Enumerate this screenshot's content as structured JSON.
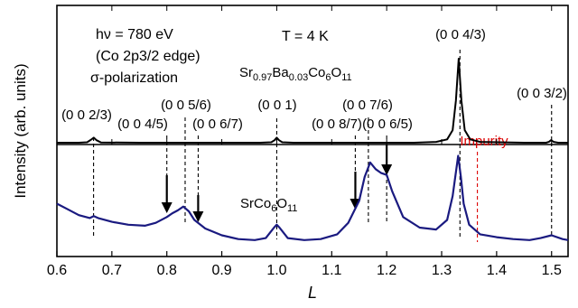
{
  "chart_data": {
    "type": "line",
    "xlabel": "L",
    "ylabel": "Intensity (arb. units)",
    "xlim": [
      0.6,
      1.53
    ],
    "x_ticks": [
      "0.6",
      "0.7",
      "0.8",
      "0.9",
      "1.0",
      "1.1",
      "1.2",
      "1.3",
      "1.4",
      "1.5"
    ],
    "grid": false,
    "annotations": {
      "energy": "hν = 780 eV",
      "edge": "(Co 2p3/2 edge)",
      "polarization": "σ-polarization",
      "temperature": "T = 4 K"
    },
    "series": [
      {
        "name": "Sr0.97Ba0.03Co6O11",
        "color": "#000000",
        "baseline": 0.0,
        "points": [
          [
            0.6,
            0.0
          ],
          [
            0.64,
            0.0
          ],
          [
            0.655,
            0.005
          ],
          [
            0.663,
            0.04
          ],
          [
            0.667,
            0.06
          ],
          [
            0.672,
            0.03
          ],
          [
            0.68,
            0.003
          ],
          [
            0.75,
            0.0
          ],
          [
            0.97,
            0.0
          ],
          [
            0.99,
            0.005
          ],
          [
            0.996,
            0.03
          ],
          [
            1.0,
            0.06
          ],
          [
            1.004,
            0.03
          ],
          [
            1.01,
            0.005
          ],
          [
            1.03,
            0.0
          ],
          [
            1.25,
            0.0
          ],
          [
            1.29,
            0.01
          ],
          [
            1.31,
            0.04
          ],
          [
            1.32,
            0.15
          ],
          [
            1.326,
            0.5
          ],
          [
            1.331,
            1.0
          ],
          [
            1.336,
            0.5
          ],
          [
            1.342,
            0.15
          ],
          [
            1.352,
            0.04
          ],
          [
            1.37,
            0.01
          ],
          [
            1.45,
            0.0
          ],
          [
            1.49,
            0.0
          ],
          [
            1.495,
            0.01
          ],
          [
            1.499,
            0.03
          ],
          [
            1.504,
            0.01
          ],
          [
            1.512,
            0.0
          ],
          [
            1.53,
            0.0
          ]
        ]
      },
      {
        "name": "SrCo6O11",
        "color": "#1a1a80",
        "baseline": 0.0,
        "points": [
          [
            0.6,
            0.42
          ],
          [
            0.62,
            0.36
          ],
          [
            0.64,
            0.3
          ],
          [
            0.66,
            0.27
          ],
          [
            0.667,
            0.29
          ],
          [
            0.675,
            0.27
          ],
          [
            0.7,
            0.23
          ],
          [
            0.73,
            0.2
          ],
          [
            0.76,
            0.19
          ],
          [
            0.78,
            0.22
          ],
          [
            0.8,
            0.28
          ],
          [
            0.81,
            0.32
          ],
          [
            0.82,
            0.35
          ],
          [
            0.83,
            0.39
          ],
          [
            0.84,
            0.34
          ],
          [
            0.85,
            0.25
          ],
          [
            0.87,
            0.16
          ],
          [
            0.9,
            0.09
          ],
          [
            0.93,
            0.05
          ],
          [
            0.96,
            0.04
          ],
          [
            0.98,
            0.06
          ],
          [
            0.995,
            0.17
          ],
          [
            1.0,
            0.2
          ],
          [
            1.005,
            0.17
          ],
          [
            1.02,
            0.06
          ],
          [
            1.05,
            0.04
          ],
          [
            1.08,
            0.05
          ],
          [
            1.11,
            0.1
          ],
          [
            1.13,
            0.22
          ],
          [
            1.15,
            0.45
          ],
          [
            1.16,
            0.7
          ],
          [
            1.17,
            0.85
          ],
          [
            1.18,
            0.78
          ],
          [
            1.19,
            0.74
          ],
          [
            1.2,
            0.72
          ],
          [
            1.21,
            0.55
          ],
          [
            1.23,
            0.28
          ],
          [
            1.26,
            0.17
          ],
          [
            1.29,
            0.15
          ],
          [
            1.31,
            0.25
          ],
          [
            1.32,
            0.5
          ],
          [
            1.33,
            0.92
          ],
          [
            1.335,
            0.7
          ],
          [
            1.34,
            0.42
          ],
          [
            1.35,
            0.2
          ],
          [
            1.37,
            0.1
          ],
          [
            1.4,
            0.07
          ],
          [
            1.43,
            0.05
          ],
          [
            1.46,
            0.04
          ],
          [
            1.48,
            0.06
          ],
          [
            1.5,
            0.09
          ],
          [
            1.52,
            0.05
          ],
          [
            1.53,
            0.04
          ]
        ]
      }
    ],
    "reflection_markers": [
      {
        "label": "(0 0 2/3)",
        "x": 0.6667
      },
      {
        "label": "(0 0 4/5)",
        "x": 0.8
      },
      {
        "label": "(0 0 5/6)",
        "x": 0.8333
      },
      {
        "label": "(0 0 6/7)",
        "x": 0.8571
      },
      {
        "label": "(0 0 1)",
        "x": 1.0
      },
      {
        "label": "(0 0 8/7)",
        "x": 1.1429
      },
      {
        "label": "(0 0 7/6)",
        "x": 1.1667
      },
      {
        "label": "(0 0 6/5)",
        "x": 1.2
      },
      {
        "label": "(0 0 4/3)",
        "x": 1.3333
      },
      {
        "label": "Impurity",
        "x": 1.365,
        "color": "#dd0000"
      },
      {
        "label": "(0 0 3/2)",
        "x": 1.5
      }
    ]
  }
}
